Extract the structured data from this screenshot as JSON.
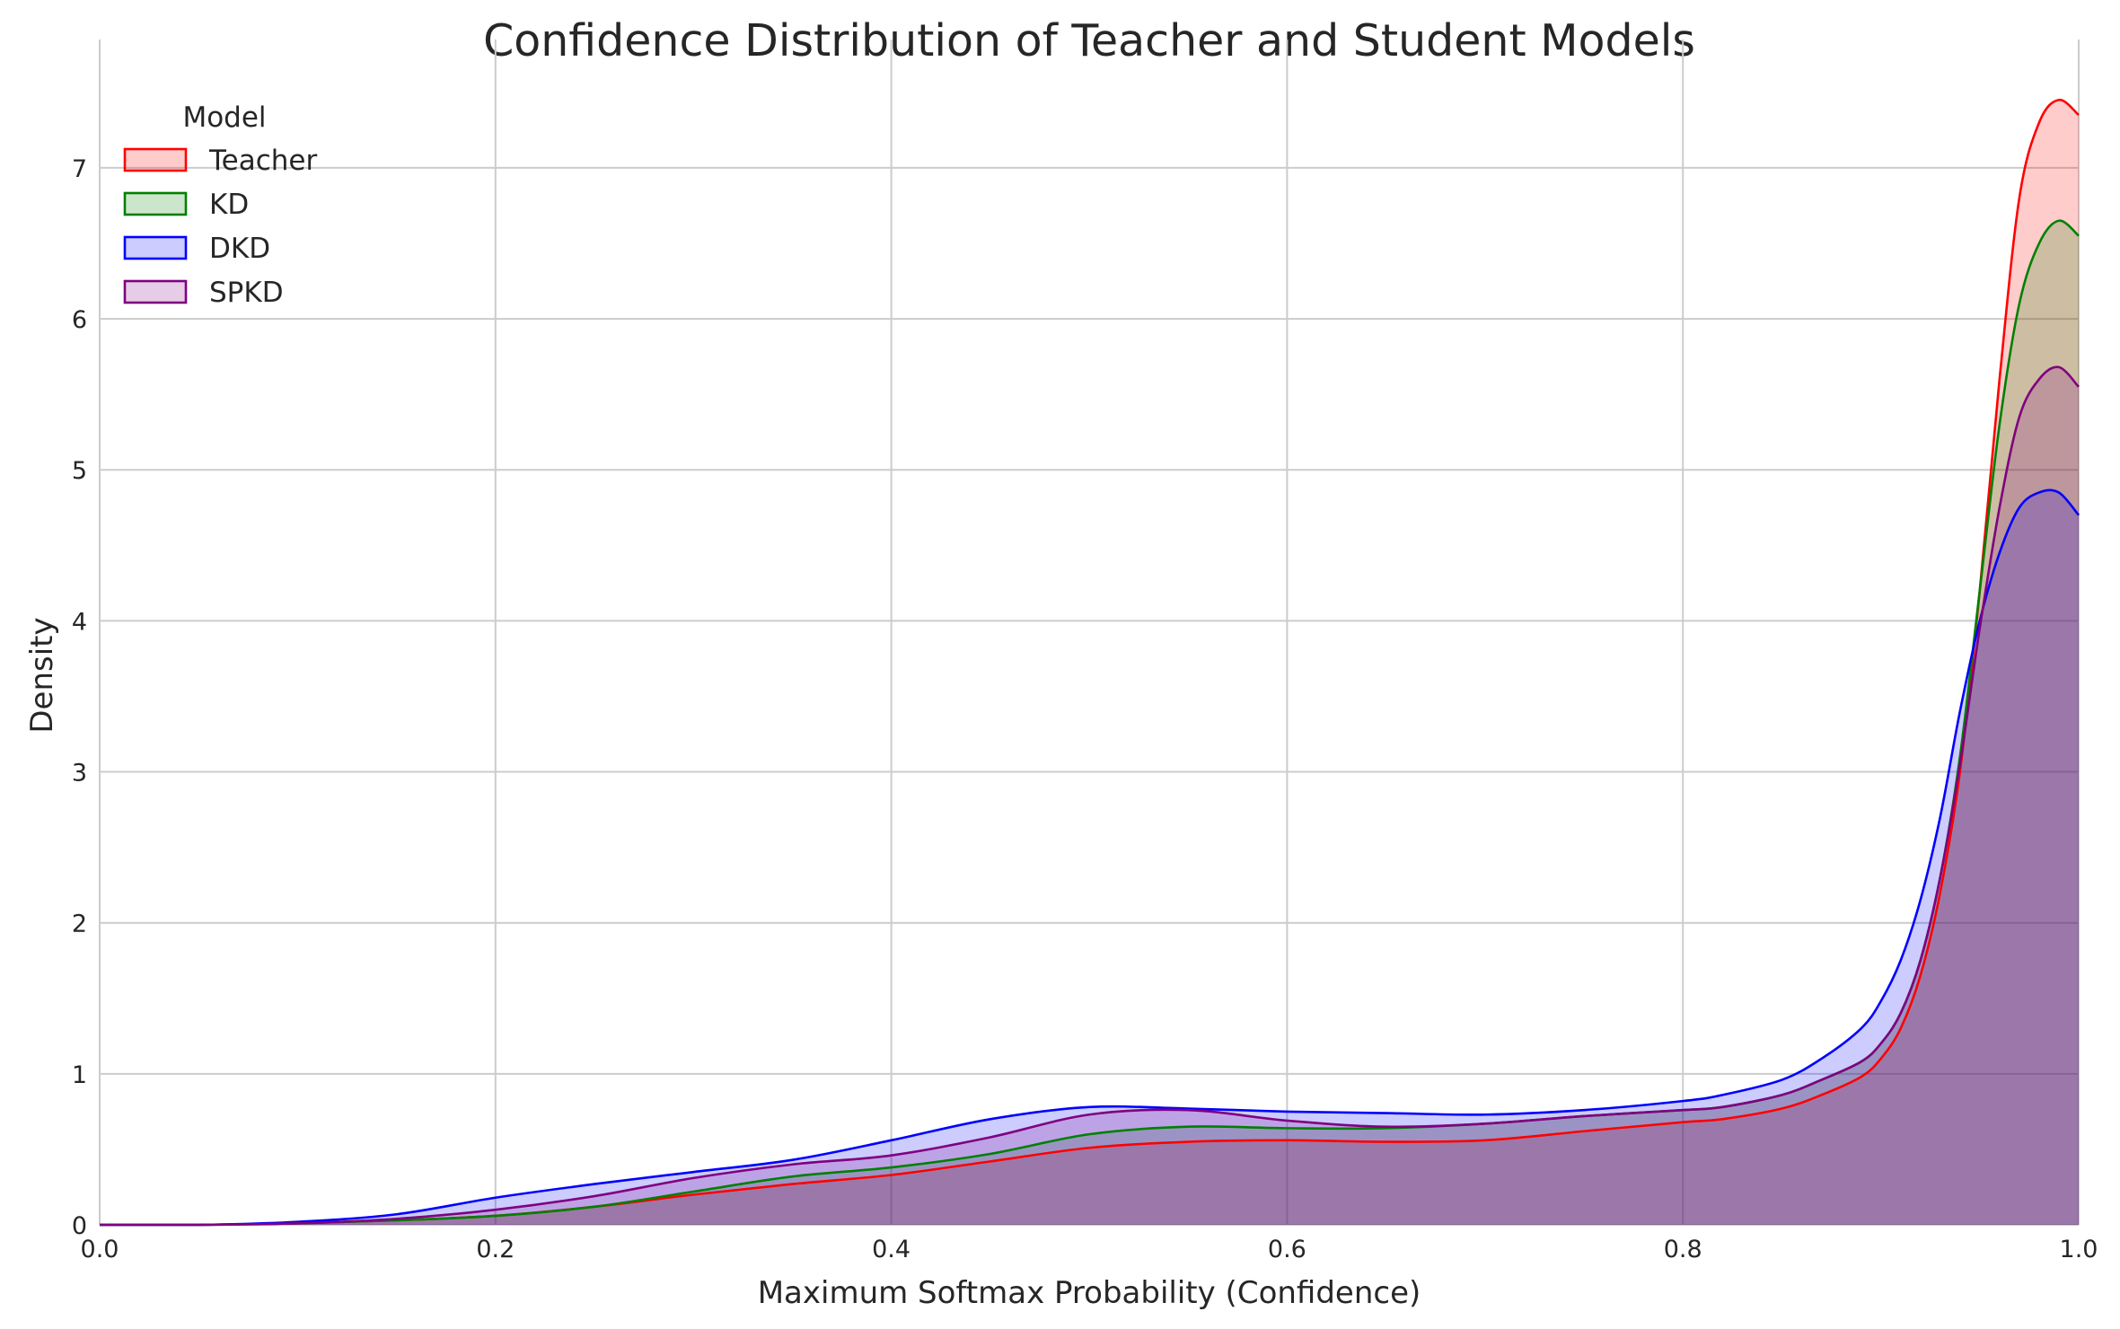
{
  "chart_data": {
    "type": "area",
    "title": "Confidence Distribution of Teacher and Student Models",
    "xlabel": "Maximum Softmax Probability (Confidence)",
    "ylabel": "Density",
    "xlim": [
      0.0,
      1.0
    ],
    "ylim": [
      0,
      7.85
    ],
    "xticks": [
      "0.0",
      "0.2",
      "0.4",
      "0.6",
      "0.8",
      "1.0"
    ],
    "yticks": [
      "0",
      "1",
      "2",
      "3",
      "4",
      "5",
      "6",
      "7"
    ],
    "grid": true,
    "legend": {
      "title": "Model",
      "placement": "top-left"
    },
    "series": [
      {
        "name": "Teacher",
        "color": "#ff0000",
        "x": [
          0.0,
          0.05,
          0.1,
          0.15,
          0.2,
          0.25,
          0.3,
          0.35,
          0.4,
          0.45,
          0.5,
          0.55,
          0.6,
          0.65,
          0.7,
          0.75,
          0.8,
          0.82,
          0.85,
          0.87,
          0.89,
          0.9,
          0.91,
          0.92,
          0.93,
          0.94,
          0.95,
          0.96,
          0.97,
          0.98,
          0.99,
          1.0
        ],
        "y": [
          0.0,
          0.0,
          0.01,
          0.03,
          0.06,
          0.12,
          0.2,
          0.27,
          0.33,
          0.42,
          0.51,
          0.55,
          0.56,
          0.55,
          0.56,
          0.62,
          0.68,
          0.7,
          0.77,
          0.86,
          0.98,
          1.1,
          1.3,
          1.65,
          2.2,
          3.0,
          4.2,
          5.6,
          6.8,
          7.3,
          7.45,
          7.35
        ]
      },
      {
        "name": "KD",
        "color": "#008000",
        "x": [
          0.0,
          0.05,
          0.1,
          0.15,
          0.2,
          0.25,
          0.3,
          0.35,
          0.4,
          0.45,
          0.5,
          0.55,
          0.6,
          0.65,
          0.7,
          0.75,
          0.8,
          0.82,
          0.85,
          0.87,
          0.89,
          0.9,
          0.91,
          0.92,
          0.93,
          0.94,
          0.95,
          0.96,
          0.97,
          0.98,
          0.99,
          1.0
        ],
        "y": [
          0.0,
          0.0,
          0.01,
          0.03,
          0.06,
          0.12,
          0.22,
          0.32,
          0.38,
          0.47,
          0.6,
          0.65,
          0.64,
          0.64,
          0.67,
          0.72,
          0.76,
          0.78,
          0.86,
          0.96,
          1.08,
          1.2,
          1.4,
          1.75,
          2.3,
          3.1,
          4.2,
          5.3,
          6.1,
          6.5,
          6.65,
          6.55
        ]
      },
      {
        "name": "DKD",
        "color": "#0000ff",
        "x": [
          0.0,
          0.05,
          0.1,
          0.15,
          0.2,
          0.25,
          0.3,
          0.35,
          0.4,
          0.45,
          0.5,
          0.55,
          0.6,
          0.65,
          0.7,
          0.75,
          0.8,
          0.82,
          0.85,
          0.87,
          0.89,
          0.9,
          0.91,
          0.92,
          0.93,
          0.94,
          0.95,
          0.96,
          0.97,
          0.98,
          0.99,
          1.0
        ],
        "y": [
          0.0,
          0.0,
          0.02,
          0.07,
          0.18,
          0.27,
          0.35,
          0.43,
          0.56,
          0.7,
          0.78,
          0.77,
          0.75,
          0.74,
          0.73,
          0.76,
          0.82,
          0.86,
          0.96,
          1.1,
          1.3,
          1.48,
          1.75,
          2.15,
          2.7,
          3.4,
          4.0,
          4.45,
          4.75,
          4.85,
          4.85,
          4.7
        ]
      },
      {
        "name": "SPKD",
        "color": "#800080",
        "x": [
          0.0,
          0.05,
          0.1,
          0.15,
          0.2,
          0.25,
          0.3,
          0.35,
          0.4,
          0.45,
          0.5,
          0.55,
          0.6,
          0.65,
          0.7,
          0.75,
          0.8,
          0.82,
          0.85,
          0.87,
          0.89,
          0.9,
          0.91,
          0.92,
          0.93,
          0.94,
          0.95,
          0.96,
          0.97,
          0.98,
          0.99,
          1.0
        ],
        "y": [
          0.0,
          0.0,
          0.01,
          0.04,
          0.1,
          0.19,
          0.31,
          0.4,
          0.46,
          0.58,
          0.73,
          0.76,
          0.69,
          0.65,
          0.67,
          0.72,
          0.76,
          0.78,
          0.86,
          0.96,
          1.08,
          1.2,
          1.4,
          1.75,
          2.3,
          3.05,
          3.95,
          4.75,
          5.35,
          5.6,
          5.68,
          5.55
        ]
      }
    ]
  }
}
